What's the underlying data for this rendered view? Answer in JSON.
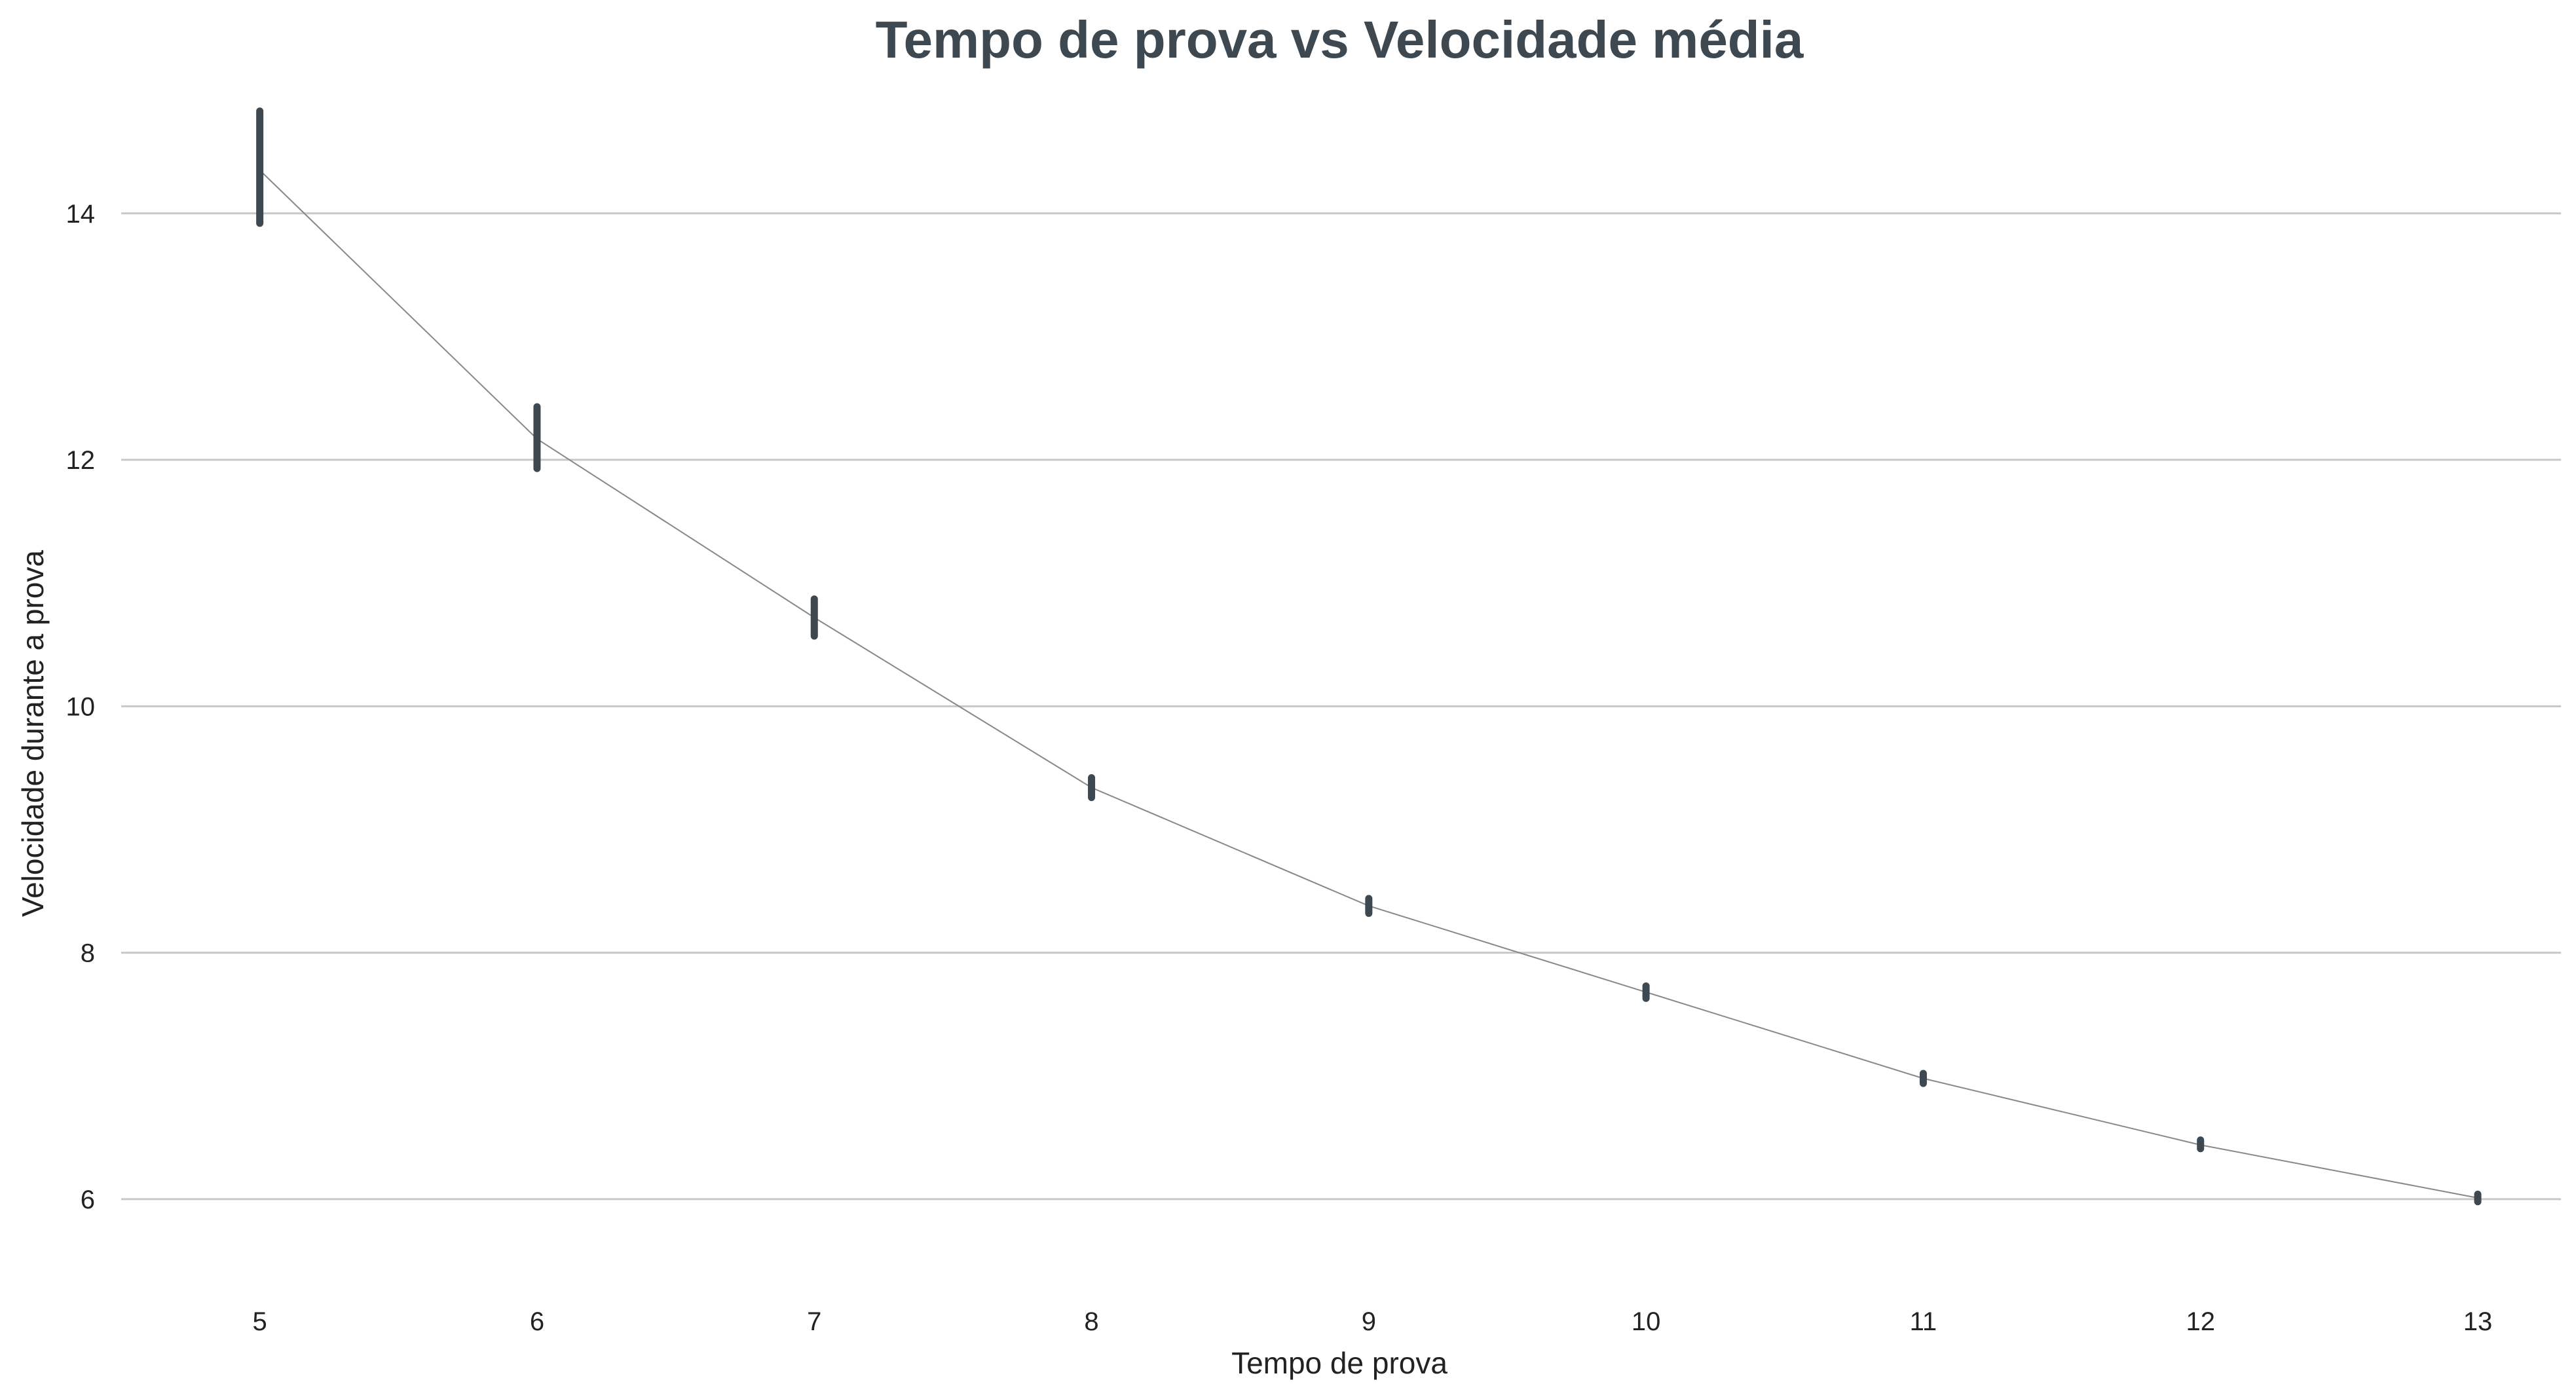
{
  "chart_data": {
    "type": "line",
    "title": "Tempo de prova vs Velocidade média",
    "xlabel": "Tempo de prova",
    "ylabel": "Velocidade durante a prova",
    "x": [
      5,
      6,
      7,
      8,
      9,
      10,
      11,
      12,
      13
    ],
    "xlim": [
      4.5,
      13.3
    ],
    "ylim": [
      5.5,
      15.2
    ],
    "yticks": [
      6,
      8,
      10,
      12,
      14
    ],
    "grid": "horizontal",
    "legend": "none",
    "series": [
      {
        "values": [
          14.35,
          12.17,
          10.72,
          9.34,
          8.38,
          7.68,
          6.98,
          6.44,
          6.01
        ],
        "ci_low": [
          13.92,
          11.93,
          10.57,
          9.26,
          8.32,
          7.63,
          6.94,
          6.41,
          5.98
        ],
        "ci_high": [
          14.83,
          12.43,
          10.87,
          9.42,
          8.44,
          7.73,
          7.02,
          6.48,
          6.04
        ]
      }
    ],
    "colors": {
      "line": "#888888",
      "error_bar": "#3d4851",
      "grid": "#c8c8c8",
      "title": "#3d4851",
      "text": "#222222"
    }
  }
}
